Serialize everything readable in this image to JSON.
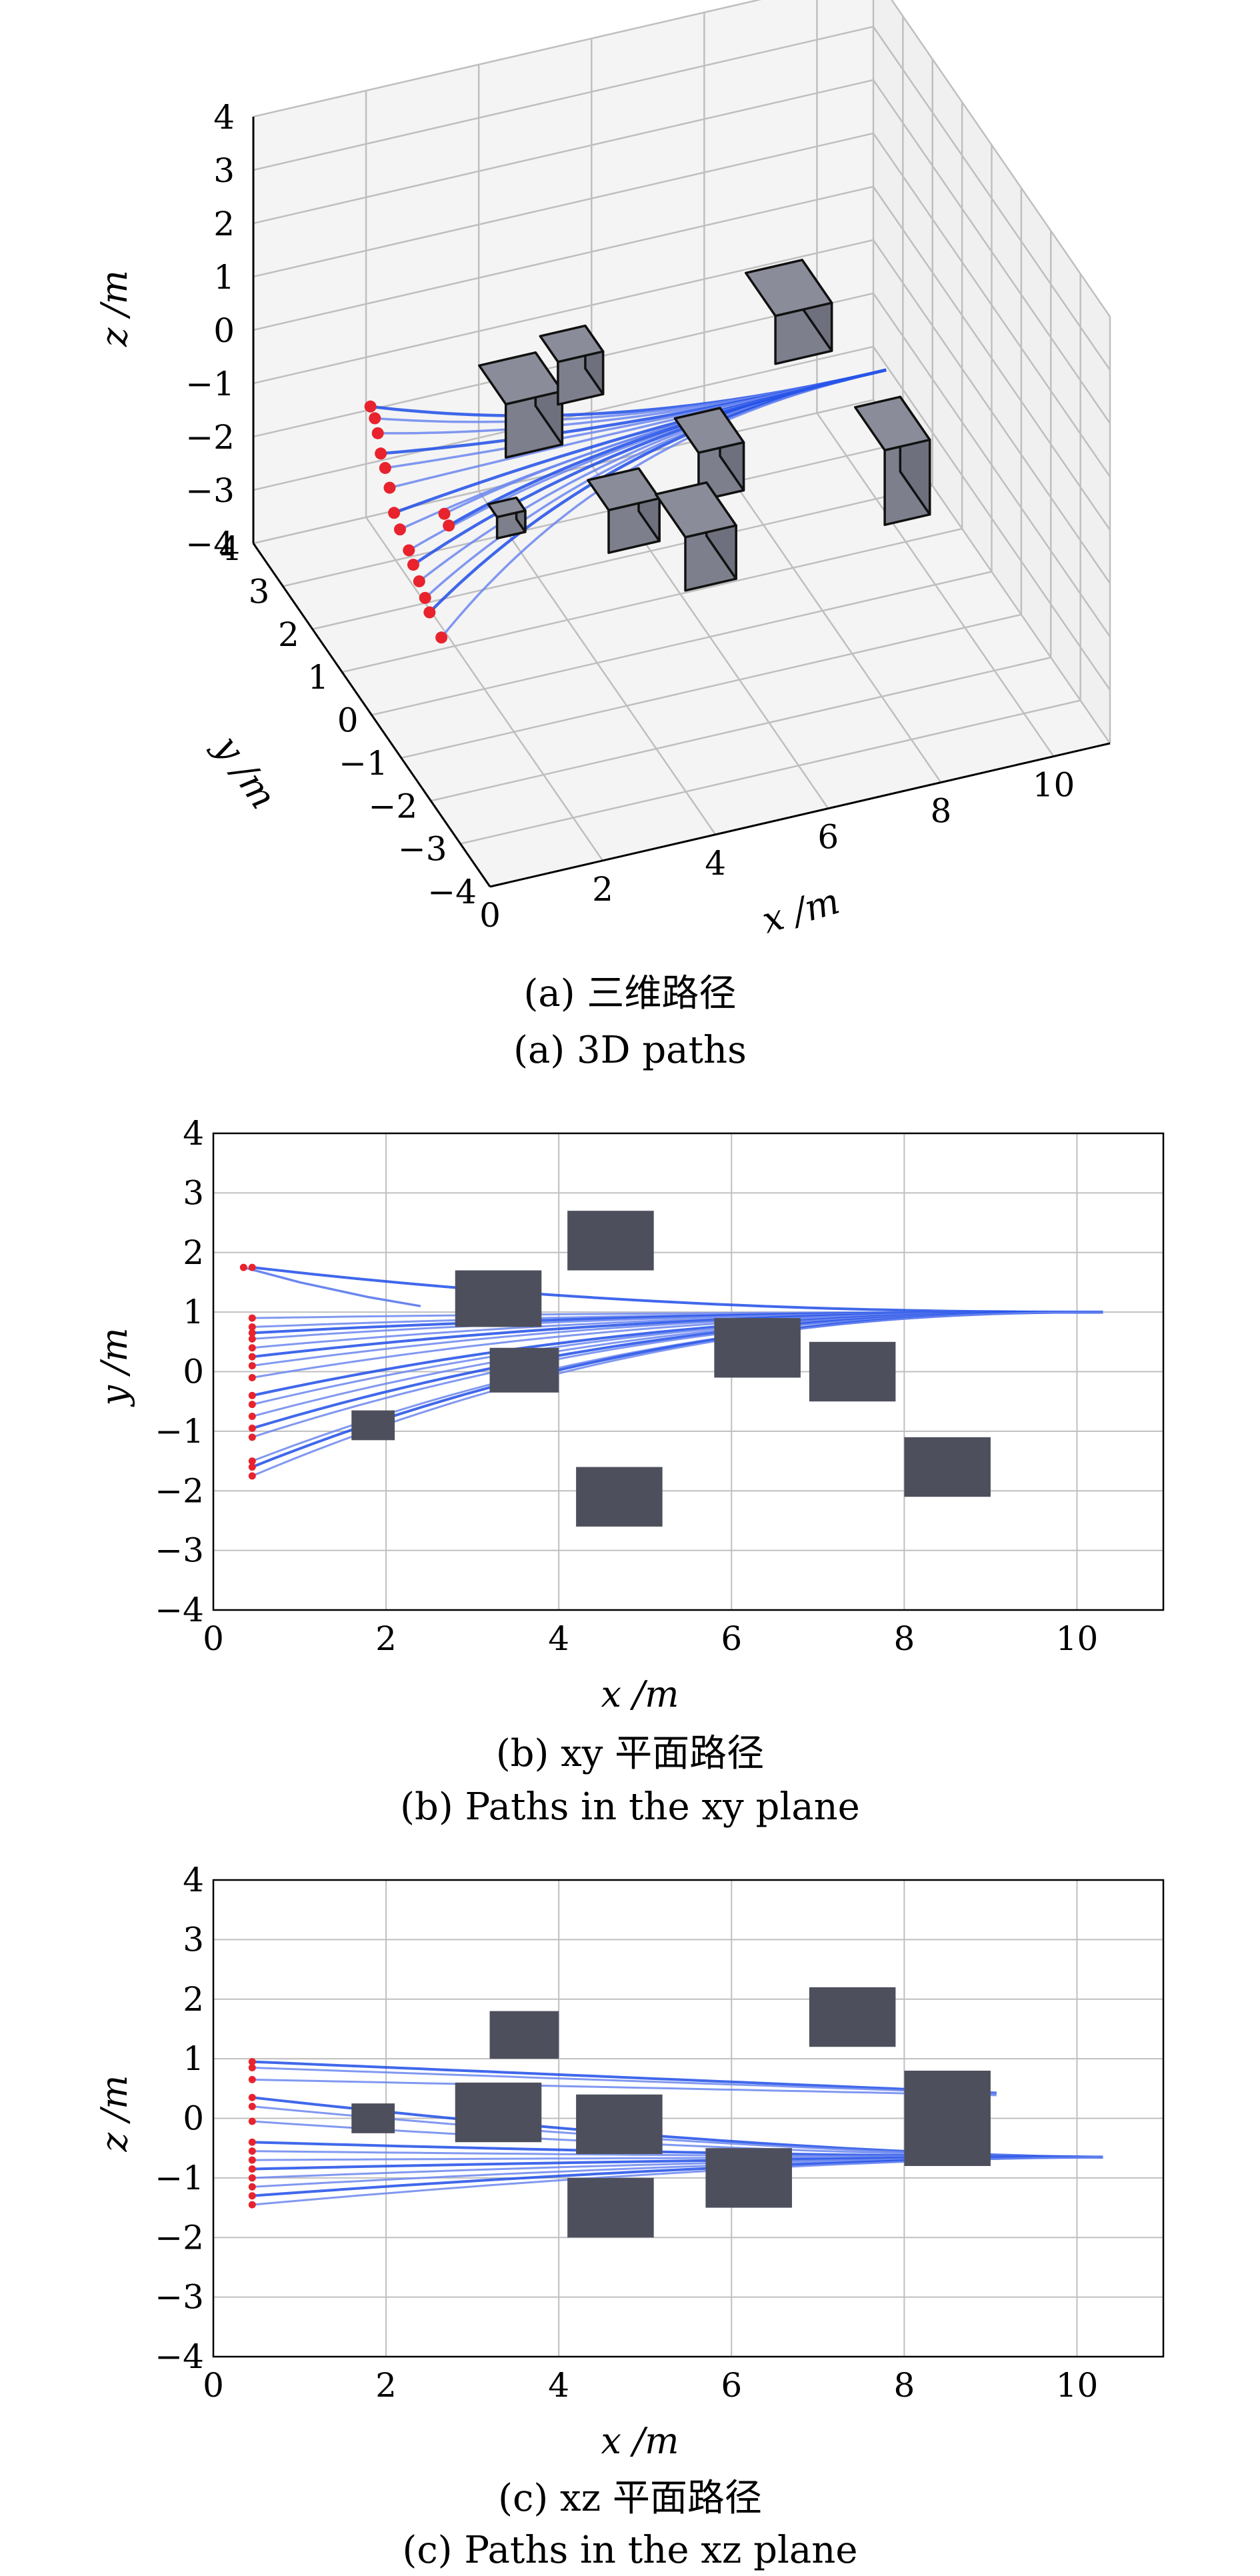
{
  "figures": [
    {
      "id": "a",
      "caption_cn": "(a) 三维路径",
      "caption_en": "(a) 3D paths"
    },
    {
      "id": "b",
      "caption_cn": "(b) xy 平面路径",
      "caption_en": "(b) Paths in the xy plane"
    },
    {
      "id": "c",
      "caption_cn": "(c) xz 平面路径",
      "caption_en": "(c) Paths in the xz plane"
    }
  ],
  "colors": {
    "path": "#1f4de8",
    "path_light": "#6b86ee",
    "start": "#e8232d",
    "obstacle": "#4d4f5c",
    "obstacle_3d_top": "#8a8d99",
    "grid": "#bfbfbf"
  },
  "chart_data": [
    {
      "type": "line",
      "panel": "a",
      "projection": "3d",
      "xlabel": "x /m",
      "ylabel": "y /m",
      "zlabel": "z /m",
      "xlim": [
        0,
        11
      ],
      "ylim": [
        -4,
        4
      ],
      "zlim": [
        -4,
        4
      ],
      "xticks": [
        "0",
        "2",
        "4",
        "6",
        "8",
        "10"
      ],
      "yticks": [
        "4",
        "3",
        "2",
        "1",
        "0",
        "−1",
        "−2",
        "−3",
        "−4"
      ],
      "zticks": [
        "4",
        "3",
        "2",
        "1",
        "0",
        "−1",
        "−2",
        "−3",
        "−4"
      ],
      "grid": true,
      "obstacles": [
        {
          "x": [
            1.7,
            2.2
          ],
          "y": [
            -1.0,
            -0.7
          ],
          "z": [
            -0.3,
            0.1
          ]
        },
        {
          "x": [
            2.8,
            3.8
          ],
          "y": [
            0.8,
            1.7
          ],
          "z": [
            -0.5,
            0.5
          ]
        },
        {
          "x": [
            3.2,
            4.0
          ],
          "y": [
            -0.2,
            0.4
          ],
          "z": [
            1.2,
            2.0
          ]
        },
        {
          "x": [
            4.1,
            5.0
          ],
          "y": [
            -0.2,
            0.5
          ],
          "z": [
            -1.8,
            -1.0
          ]
        },
        {
          "x": [
            5.8,
            6.6
          ],
          "y": [
            0.0,
            0.8
          ],
          "z": [
            -1.4,
            -0.5
          ]
        },
        {
          "x": [
            4.2,
            5.1
          ],
          "y": [
            -2.6,
            -1.6
          ],
          "z": [
            -0.6,
            0.4
          ]
        },
        {
          "x": [
            6.9,
            7.9
          ],
          "y": [
            -0.5,
            0.5
          ],
          "z": [
            1.3,
            2.2
          ]
        },
        {
          "x": [
            8.0,
            8.8
          ],
          "y": [
            -2.1,
            -1.1
          ],
          "z": [
            -0.7,
            0.7
          ]
        }
      ]
    },
    {
      "type": "line",
      "panel": "b",
      "xlabel": "x /m",
      "ylabel": "y /m",
      "xlim": [
        0,
        11
      ],
      "ylim": [
        -4,
        4
      ],
      "xticks": [
        0,
        2,
        4,
        6,
        8,
        10
      ],
      "yticks": [
        -4,
        -3,
        -2,
        -1,
        0,
        1,
        2,
        3,
        4
      ],
      "grid": true,
      "start_x": 0.45,
      "start_y": [
        1.75,
        0.9,
        0.75,
        0.65,
        0.55,
        0.4,
        0.25,
        0.1,
        -0.1,
        -0.4,
        -0.55,
        -0.75,
        -0.95,
        -1.1,
        -1.5,
        -1.6,
        -1.75
      ],
      "goal": [
        10.3,
        1.0
      ],
      "stray_path": {
        "x": [
          0.35,
          1.0,
          1.8,
          2.4
        ],
        "y": [
          1.75,
          1.5,
          1.25,
          1.1
        ]
      },
      "obstacles": [
        {
          "x": [
            1.6,
            2.1
          ],
          "y": [
            -1.15,
            -0.65
          ]
        },
        {
          "x": [
            2.8,
            3.8
          ],
          "y": [
            0.75,
            1.7
          ]
        },
        {
          "x": [
            3.2,
            4.0
          ],
          "y": [
            -0.35,
            0.4
          ]
        },
        {
          "x": [
            4.1,
            5.1
          ],
          "y": [
            1.7,
            2.7
          ]
        },
        {
          "x": [
            4.2,
            5.2
          ],
          "y": [
            -2.6,
            -1.6
          ]
        },
        {
          "x": [
            5.8,
            6.8
          ],
          "y": [
            -0.1,
            0.9
          ]
        },
        {
          "x": [
            6.9,
            7.9
          ],
          "y": [
            -0.5,
            0.5
          ]
        },
        {
          "x": [
            8.0,
            9.0
          ],
          "y": [
            -2.1,
            -1.1
          ]
        }
      ]
    },
    {
      "type": "line",
      "panel": "c",
      "xlabel": "x /m",
      "ylabel": "z /m",
      "xlim": [
        0,
        11
      ],
      "ylim": [
        -4,
        4
      ],
      "xticks": [
        0,
        2,
        4,
        6,
        8,
        10
      ],
      "yticks": [
        -4,
        -3,
        -2,
        -1,
        0,
        1,
        2,
        3,
        4
      ],
      "grid": true,
      "start_x": 0.45,
      "start_z": [
        0.95,
        0.85,
        0.65,
        0.35,
        0.2,
        -0.05,
        -0.4,
        -0.55,
        -0.7,
        -0.85,
        -1.0,
        -1.15,
        -1.3,
        -1.45
      ],
      "goal": [
        10.3,
        -0.65
      ],
      "obstacles": [
        {
          "x": [
            1.6,
            2.1
          ],
          "y": [
            -0.25,
            0.25
          ]
        },
        {
          "x": [
            2.8,
            3.8
          ],
          "y": [
            -0.4,
            0.6
          ]
        },
        {
          "x": [
            3.2,
            4.0
          ],
          "y": [
            1.0,
            1.8
          ]
        },
        {
          "x": [
            4.2,
            5.2
          ],
          "y": [
            -0.6,
            0.4
          ]
        },
        {
          "x": [
            4.1,
            5.1
          ],
          "y": [
            -2.0,
            -1.0
          ]
        },
        {
          "x": [
            5.7,
            6.7
          ],
          "y": [
            -1.5,
            -0.5
          ]
        },
        {
          "x": [
            6.9,
            7.9
          ],
          "y": [
            1.2,
            2.2
          ]
        },
        {
          "x": [
            8.0,
            9.0
          ],
          "y": [
            -0.8,
            0.8
          ]
        }
      ]
    }
  ]
}
